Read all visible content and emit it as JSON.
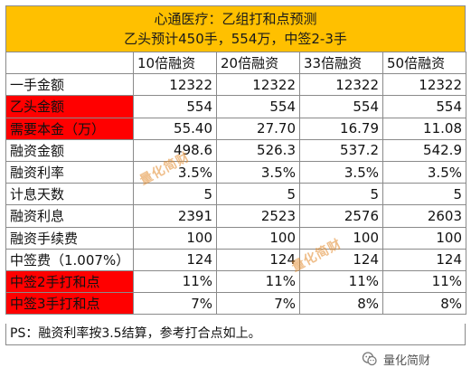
{
  "title": {
    "line1": "心通医疗：乙组打和点预测",
    "line2": "乙头预计450手，554万，中签2-3手"
  },
  "table": {
    "headers": [
      "",
      "10倍融资",
      "20倍融资",
      "33倍融资",
      "50倍融资"
    ],
    "rows": [
      {
        "label": "一手金额",
        "style": "normal",
        "values": [
          "12322",
          "12322",
          "12322",
          "12322"
        ]
      },
      {
        "label": "乙头金额",
        "style": "red",
        "values": [
          "554",
          "554",
          "554",
          "554"
        ]
      },
      {
        "label": "需要本金（万）",
        "style": "red-blue",
        "values": [
          "55.40",
          "27.70",
          "16.79",
          "11.08"
        ]
      },
      {
        "label": "融资金额",
        "style": "normal",
        "values": [
          "498.6",
          "526.3",
          "537.2",
          "542.9"
        ]
      },
      {
        "label": "融资利率",
        "style": "normal",
        "values": [
          "3.5%",
          "3.5%",
          "3.5%",
          "3.5%"
        ]
      },
      {
        "label": "计息天数",
        "style": "normal",
        "values": [
          "5",
          "5",
          "5",
          "5"
        ]
      },
      {
        "label": "融资利息",
        "style": "normal",
        "values": [
          "2391",
          "2523",
          "2576",
          "2603"
        ]
      },
      {
        "label": "融资手续费",
        "style": "normal",
        "values": [
          "100",
          "100",
          "100",
          "100"
        ]
      },
      {
        "label": "中签费（1.007%）",
        "style": "normal",
        "values": [
          "124",
          "124",
          "124",
          "124"
        ]
      },
      {
        "label": "中签2手打和点",
        "style": "red",
        "values": [
          "11%",
          "11%",
          "11%",
          "11%"
        ]
      },
      {
        "label": "中签3手打和点",
        "style": "red",
        "values": [
          "7%",
          "7%",
          "8%",
          "8%"
        ]
      }
    ]
  },
  "footer": {
    "note": "PS：融资利率按3.5结算，参考打合点如上。"
  },
  "watermarks": [
    "量化简财",
    "量化简财"
  ],
  "brand": {
    "name": "量化简财",
    "icon": "wechat-icon"
  },
  "colors": {
    "title_bg": "#ffc000",
    "highlight_red": "#ff0000",
    "value_blue": "#2e8fd6"
  }
}
